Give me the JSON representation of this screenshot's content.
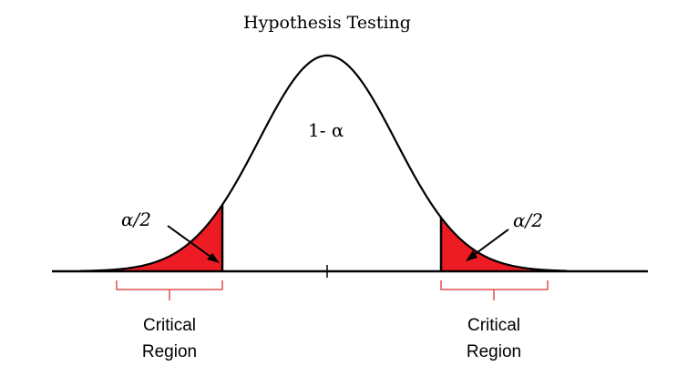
{
  "title": "Hypothesis Testing",
  "center_label": "1- α",
  "tails": [
    {
      "side": "left",
      "alpha_label": "α/2",
      "region_line1": "Critical",
      "region_line2": "Region"
    },
    {
      "side": "right",
      "alpha_label": "α/2",
      "region_line1": "Critical",
      "region_line2": "Region"
    }
  ],
  "colors": {
    "curve": "#000000",
    "critical_fill": "#ed1c24",
    "bracket": "#e05050",
    "axis": "#000000"
  }
}
